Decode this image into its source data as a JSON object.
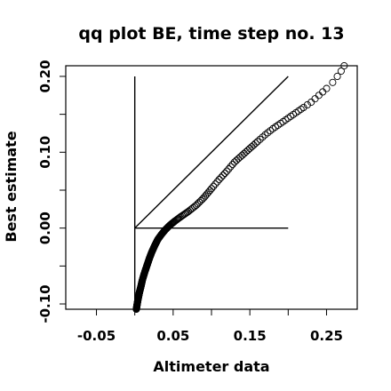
{
  "chart_data": {
    "type": "scatter",
    "title": "qq plot BE, time step no. 13",
    "xlabel": "Altimeter data",
    "ylabel": "Best estimate",
    "xlim": [
      -0.09,
      0.29
    ],
    "ylim": [
      -0.107,
      0.214
    ],
    "x_ticks": [
      -0.05,
      0.05,
      0.15,
      0.25
    ],
    "x_tick_labels": [
      "-0.05",
      "0.05",
      "0.15",
      "0.25"
    ],
    "x_minor_ticks": [
      0.0,
      0.1,
      0.2
    ],
    "y_ticks": [
      -0.1,
      0.0,
      0.1,
      0.2
    ],
    "y_tick_labels": [
      "-0.10",
      "0.00",
      "0.10",
      "0.20"
    ],
    "y_minor_ticks": [
      -0.05,
      0.05,
      0.15
    ],
    "marker": "open-circle",
    "grid": false,
    "reference_lines": [
      {
        "kind": "identity",
        "from": [
          0.0,
          0.0
        ],
        "to": [
          0.2,
          0.2
        ]
      },
      {
        "kind": "horizontal",
        "from": [
          0.0,
          0.0
        ],
        "to": [
          0.2,
          0.0
        ]
      },
      {
        "kind": "vertical",
        "from": [
          0.0,
          -0.1
        ],
        "to": [
          0.0,
          0.2
        ]
      }
    ],
    "curve_anchors": [
      {
        "x": 0.002,
        "y": -0.107
      },
      {
        "x": 0.004,
        "y": -0.095
      },
      {
        "x": 0.006,
        "y": -0.085
      },
      {
        "x": 0.008,
        "y": -0.077
      },
      {
        "x": 0.01,
        "y": -0.068
      },
      {
        "x": 0.013,
        "y": -0.058
      },
      {
        "x": 0.016,
        "y": -0.049
      },
      {
        "x": 0.019,
        "y": -0.04
      },
      {
        "x": 0.022,
        "y": -0.032
      },
      {
        "x": 0.026,
        "y": -0.023
      },
      {
        "x": 0.03,
        "y": -0.015
      },
      {
        "x": 0.035,
        "y": -0.008
      },
      {
        "x": 0.04,
        "y": -0.002
      },
      {
        "x": 0.046,
        "y": 0.004
      },
      {
        "x": 0.052,
        "y": 0.009
      },
      {
        "x": 0.06,
        "y": 0.015
      },
      {
        "x": 0.07,
        "y": 0.022
      },
      {
        "x": 0.08,
        "y": 0.03
      },
      {
        "x": 0.09,
        "y": 0.04
      },
      {
        "x": 0.1,
        "y": 0.052
      },
      {
        "x": 0.11,
        "y": 0.064
      },
      {
        "x": 0.12,
        "y": 0.075
      },
      {
        "x": 0.13,
        "y": 0.087
      },
      {
        "x": 0.14,
        "y": 0.096
      },
      {
        "x": 0.15,
        "y": 0.105
      },
      {
        "x": 0.16,
        "y": 0.114
      },
      {
        "x": 0.17,
        "y": 0.123
      },
      {
        "x": 0.18,
        "y": 0.131
      },
      {
        "x": 0.19,
        "y": 0.138
      },
      {
        "x": 0.2,
        "y": 0.145
      },
      {
        "x": 0.21,
        "y": 0.152
      },
      {
        "x": 0.22,
        "y": 0.159
      },
      {
        "x": 0.23,
        "y": 0.166
      },
      {
        "x": 0.24,
        "y": 0.175
      },
      {
        "x": 0.25,
        "y": 0.184
      },
      {
        "x": 0.258,
        "y": 0.192
      },
      {
        "x": 0.264,
        "y": 0.2
      },
      {
        "x": 0.269,
        "y": 0.207
      },
      {
        "x": 0.273,
        "y": 0.214
      }
    ],
    "points_per_segment": [
      24,
      22,
      20,
      18,
      16,
      14,
      13,
      12,
      11,
      10,
      9,
      8,
      8,
      7,
      6,
      6,
      5,
      5,
      5,
      4,
      4,
      4,
      4,
      4,
      4,
      3,
      3,
      3,
      3,
      3,
      3,
      2,
      2,
      2,
      1,
      1,
      1,
      1
    ]
  }
}
